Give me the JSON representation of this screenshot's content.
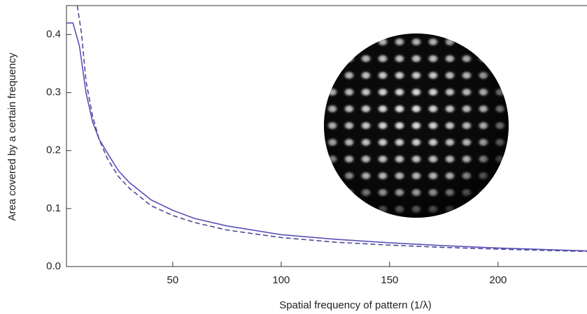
{
  "chart_data": {
    "type": "line",
    "x_label": "Spatial frequency of pattern (1/λ)",
    "y_label": "Area covered by a certain frequency",
    "xlim": [
      1,
      241
    ],
    "ylim": [
      0,
      0.45
    ],
    "xticks": [
      50,
      100,
      150,
      200
    ],
    "yticks": [
      {
        "value": 0,
        "label": "0.0"
      },
      0.1,
      0.2,
      0.3,
      0.4
    ],
    "series": [
      {
        "color": "#5b50b8",
        "style": "solid",
        "x": [
          1,
          4,
          7,
          10,
          13,
          16,
          20,
          25,
          30,
          40,
          50,
          60,
          75,
          100,
          125,
          150,
          175,
          200,
          241
        ],
        "values": [
          0.42,
          0.42,
          0.38,
          0.3,
          0.25,
          0.22,
          0.195,
          0.165,
          0.145,
          0.115,
          0.097,
          0.083,
          0.07,
          0.055,
          0.047,
          0.041,
          0.036,
          0.032,
          0.027
        ]
      },
      {
        "color": "#4a4a9a",
        "style": "dashed",
        "x": [
          6,
          8,
          10,
          13,
          16,
          20,
          25,
          30,
          40,
          50,
          60,
          75,
          100,
          125,
          150,
          175,
          200,
          241
        ],
        "values": [
          0.45,
          0.4,
          0.32,
          0.26,
          0.22,
          0.185,
          0.155,
          0.135,
          0.105,
          0.088,
          0.076,
          0.063,
          0.05,
          0.042,
          0.037,
          0.033,
          0.03,
          0.026
        ]
      }
    ]
  }
}
